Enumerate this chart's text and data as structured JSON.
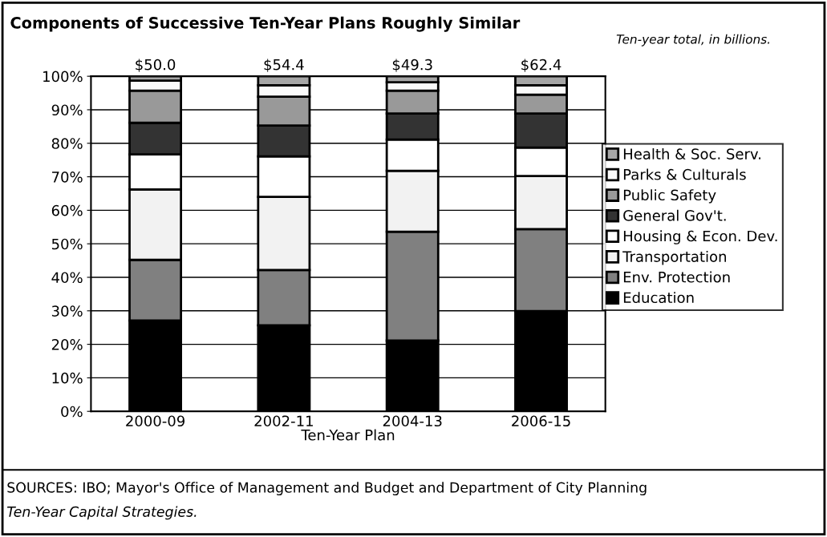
{
  "chart_data": {
    "type": "bar",
    "stacked": true,
    "title": "Components of Successive Ten-Year Plans Roughly Similar",
    "xlabel": "Ten-Year Plan",
    "categories": [
      "2000-09",
      "2002-11",
      "2004-13",
      "2006-15"
    ],
    "series": [
      {
        "name": "Education",
        "color": "#000000",
        "values": [
          27.1,
          25.7,
          21.1,
          29.9
        ]
      },
      {
        "name": "Env. Protection",
        "color": "#808080",
        "values": [
          18.1,
          16.5,
          32.5,
          24.5
        ]
      },
      {
        "name": "Transportation",
        "color": "#f2f2f2",
        "values": [
          21.0,
          21.8,
          18.2,
          15.8
        ]
      },
      {
        "name": "Housing & Econ. Dev.",
        "color": "#ffffff",
        "values": [
          10.5,
          12.1,
          9.3,
          8.5
        ]
      },
      {
        "name": "General Gov't.",
        "color": "#333333",
        "values": [
          9.4,
          9.2,
          7.8,
          10.2
        ]
      },
      {
        "name": "Public Safety",
        "color": "#999999",
        "values": [
          9.6,
          8.6,
          6.8,
          5.6
        ]
      },
      {
        "name": "Parks & Culturals",
        "color": "#fafafa",
        "values": [
          3.0,
          3.4,
          2.5,
          2.8
        ]
      },
      {
        "name": "Health & Soc. Serv.",
        "color": "#a6a6a6",
        "values": [
          1.3,
          2.7,
          1.8,
          2.7
        ]
      }
    ],
    "ylim": [
      0,
      100
    ],
    "yticks": [
      {
        "value": 0,
        "label": "0%"
      },
      {
        "value": 10,
        "label": "10%"
      },
      {
        "value": 20,
        "label": "20%"
      },
      {
        "value": 30,
        "label": "30%"
      },
      {
        "value": 40,
        "label": "40%"
      },
      {
        "value": 50,
        "label": "50%"
      },
      {
        "value": 60,
        "label": "60%"
      },
      {
        "value": 70,
        "label": "70%"
      },
      {
        "value": 80,
        "label": "80%"
      },
      {
        "value": 90,
        "label": "90%"
      },
      {
        "value": 100,
        "label": "100%"
      }
    ],
    "grid": "y",
    "legend": "right",
    "annotations": [
      {
        "text": "$50.0",
        "x": "2000-09",
        "y": 100
      },
      {
        "text": "$54.4",
        "x": "2002-11",
        "y": 100
      },
      {
        "text": "$49.3",
        "x": "2004-13",
        "y": 100
      },
      {
        "text": "$62.4",
        "x": "2006-15",
        "y": 100
      },
      "Ten-year total, in billions.",
      "SOURCES: IBO; Mayor's Office of Management and Budget and Department of City Planning",
      "Ten-Year Capital Strategies."
    ]
  }
}
